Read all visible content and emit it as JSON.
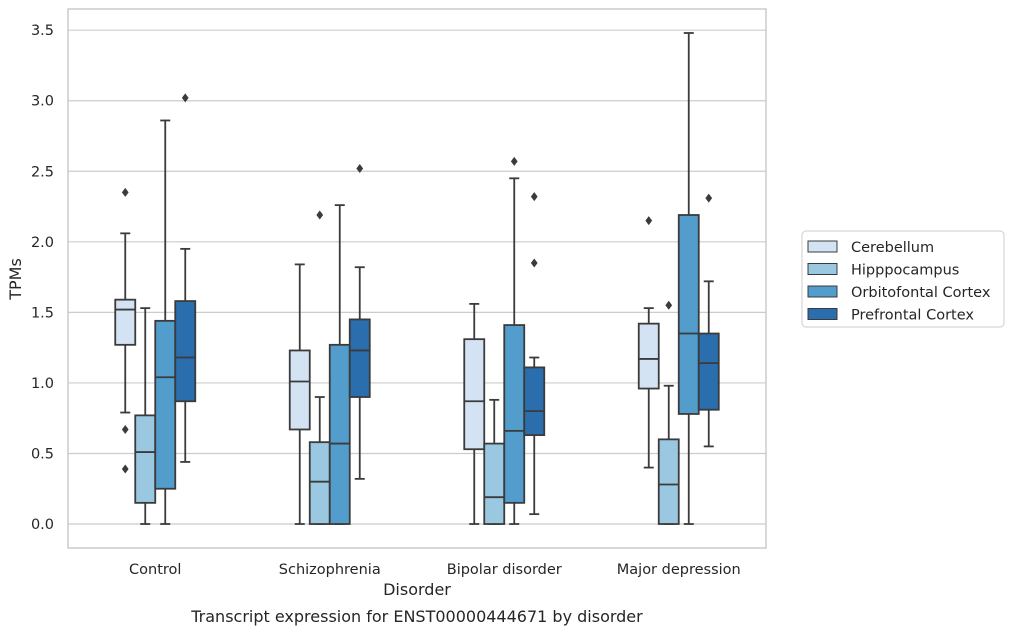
{
  "chart_data": {
    "type": "box",
    "title": "",
    "caption": "Transcript expression for ENST00000444671 by disorder",
    "xlabel": "Disorder",
    "ylabel": "TPMs",
    "ylim": [
      -0.17,
      3.65
    ],
    "yticks": [
      "0.0",
      "0.5",
      "1.0",
      "1.5",
      "2.0",
      "2.5",
      "3.0",
      "3.5"
    ],
    "ytick_values": [
      0,
      0.5,
      1.0,
      1.5,
      2.0,
      2.5,
      3.0,
      3.5
    ],
    "grid": true,
    "legend_position": "right",
    "categories": [
      "Control",
      "Schizophrenia",
      "Bipolar disorder",
      "Major depression"
    ],
    "series": [
      {
        "name": "Cerebellum",
        "color": "#d3e3f3",
        "boxes": [
          {
            "whisker_low": 0.79,
            "q1": 1.27,
            "median": 1.52,
            "q3": 1.59,
            "whisker_high": 2.06,
            "outliers": [
              2.35,
              0.67,
              0.39
            ]
          },
          {
            "whisker_low": 0.0,
            "q1": 0.67,
            "median": 1.01,
            "q3": 1.23,
            "whisker_high": 1.84,
            "outliers": []
          },
          {
            "whisker_low": 0.0,
            "q1": 0.53,
            "median": 0.87,
            "q3": 1.31,
            "whisker_high": 1.56,
            "outliers": []
          },
          {
            "whisker_low": 0.4,
            "q1": 0.96,
            "median": 1.17,
            "q3": 1.42,
            "whisker_high": 1.53,
            "outliers": [
              2.15
            ]
          }
        ]
      },
      {
        "name": "Hipppocampus",
        "color": "#9ac8e0",
        "boxes": [
          {
            "whisker_low": 0.0,
            "q1": 0.15,
            "median": 0.51,
            "q3": 0.77,
            "whisker_high": 1.53,
            "outliers": []
          },
          {
            "whisker_low": 0.0,
            "q1": 0.0,
            "median": 0.3,
            "q3": 0.58,
            "whisker_high": 0.9,
            "outliers": [
              2.19
            ]
          },
          {
            "whisker_low": 0.0,
            "q1": 0.0,
            "median": 0.19,
            "q3": 0.57,
            "whisker_high": 0.88,
            "outliers": []
          },
          {
            "whisker_low": 0.0,
            "q1": 0.0,
            "median": 0.28,
            "q3": 0.6,
            "whisker_high": 0.98,
            "outliers": [
              1.55
            ]
          }
        ]
      },
      {
        "name": "Orbitofontal Cortex",
        "color": "#529dcc",
        "boxes": [
          {
            "whisker_low": 0.0,
            "q1": 0.25,
            "median": 1.04,
            "q3": 1.44,
            "whisker_high": 2.86,
            "outliers": []
          },
          {
            "whisker_low": 0.0,
            "q1": 0.0,
            "median": 0.57,
            "q3": 1.27,
            "whisker_high": 2.26,
            "outliers": []
          },
          {
            "whisker_low": 0.0,
            "q1": 0.15,
            "median": 0.66,
            "q3": 1.41,
            "whisker_high": 2.45,
            "outliers": [
              2.57
            ]
          },
          {
            "whisker_low": 0.0,
            "q1": 0.78,
            "median": 1.35,
            "q3": 2.19,
            "whisker_high": 3.48,
            "outliers": []
          }
        ]
      },
      {
        "name": "Prefrontal Cortex",
        "color": "#2a6ead",
        "boxes": [
          {
            "whisker_low": 0.44,
            "q1": 0.87,
            "median": 1.18,
            "q3": 1.58,
            "whisker_high": 1.95,
            "outliers": [
              3.02
            ]
          },
          {
            "whisker_low": 0.32,
            "q1": 0.9,
            "median": 1.23,
            "q3": 1.45,
            "whisker_high": 1.82,
            "outliers": [
              2.52
            ]
          },
          {
            "whisker_low": 0.07,
            "q1": 0.63,
            "median": 0.8,
            "q3": 1.11,
            "whisker_high": 1.18,
            "outliers": [
              2.32,
              1.85
            ]
          },
          {
            "whisker_low": 0.55,
            "q1": 0.81,
            "median": 1.14,
            "q3": 1.35,
            "whisker_high": 1.72,
            "outliers": [
              2.31
            ]
          }
        ]
      }
    ],
    "colors": {
      "grid": "#cccccc",
      "frame": "#cccccc",
      "box_edge": "#3b3b3b"
    }
  }
}
